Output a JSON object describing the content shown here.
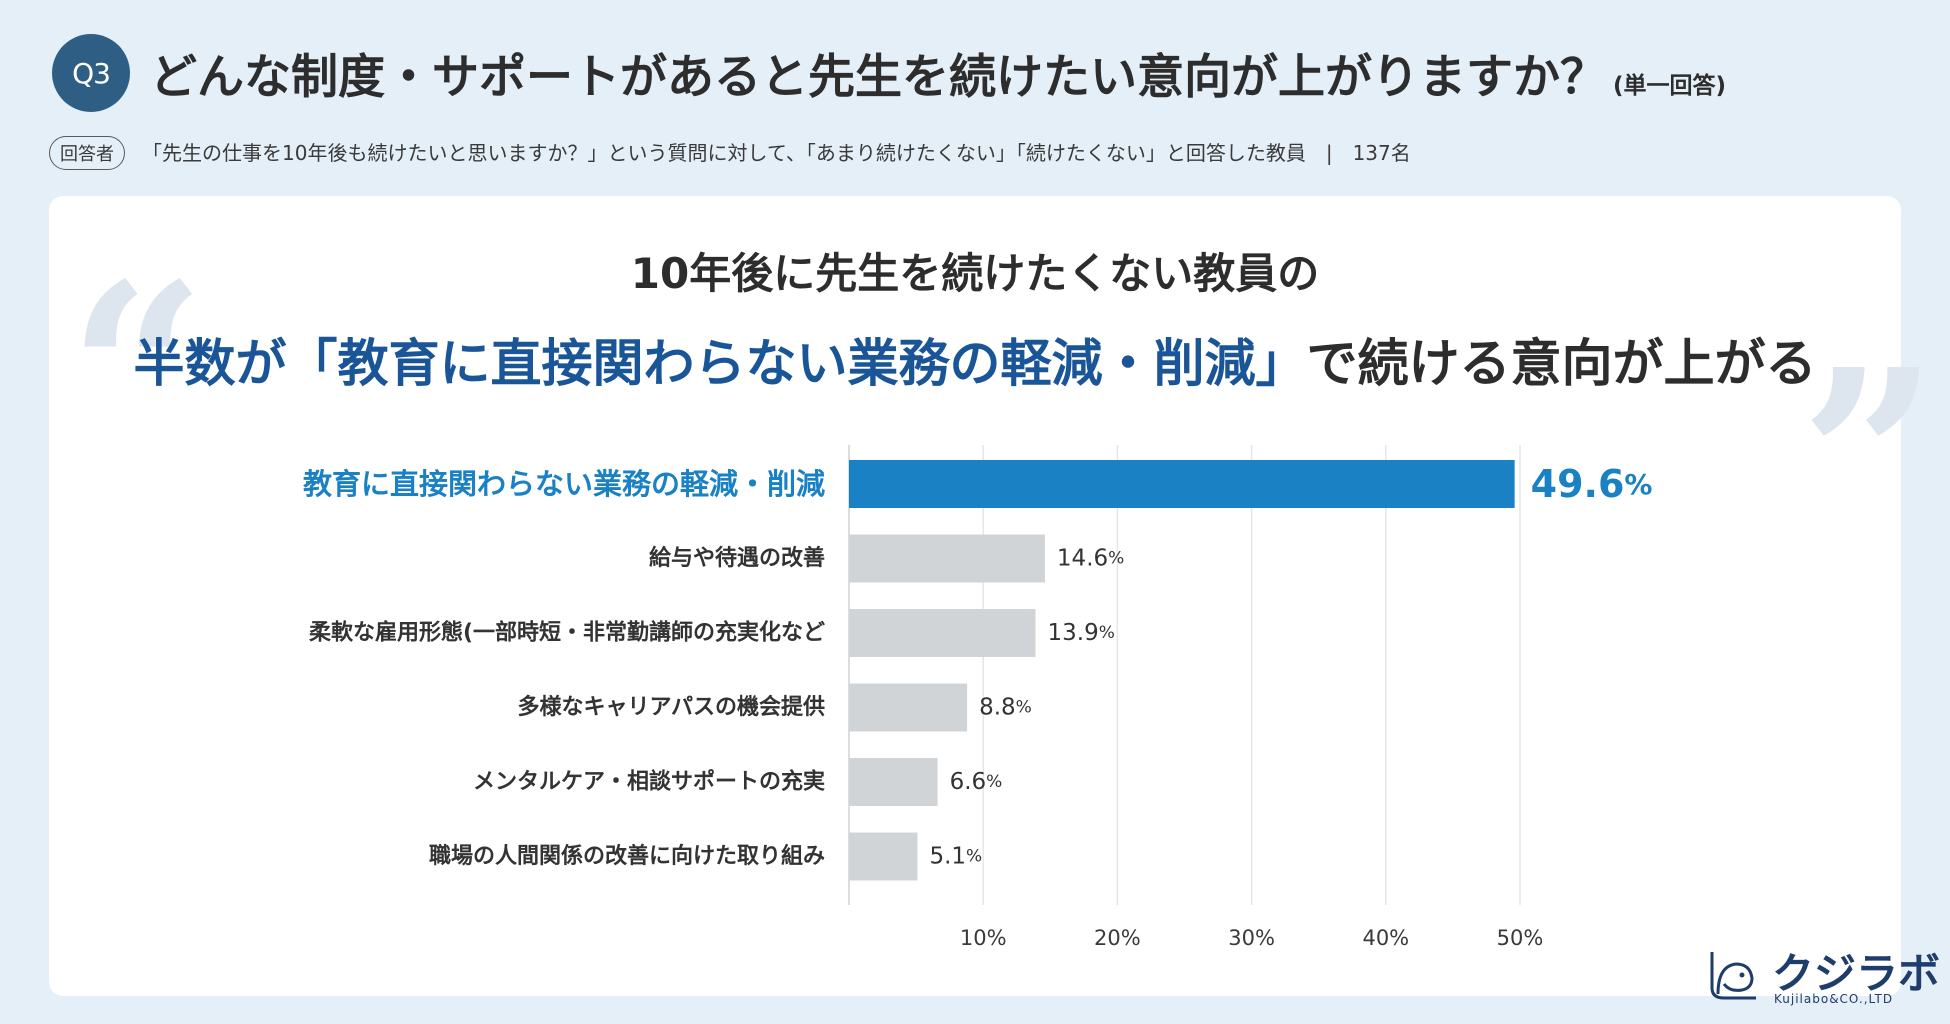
{
  "question": {
    "badge": "Q3",
    "title": "どんな制度・サポートがあると先生を続けたい意向が上がりますか？",
    "note": "(単一回答)"
  },
  "respondents": {
    "tag": "回答者",
    "text": "「先生の仕事を10年後も続けたいと思いますか？」という質問に対して、「あまり続けたくない」「続けたくない」と回答した教員　|　137名"
  },
  "headline": {
    "line1": "10年後に先生を続けたくない教員の",
    "line2_accent": "半数が「教育に直接関わらない業務の軽減・削減」",
    "line2_rest": "で続ける意向が上がる"
  },
  "chart_data": {
    "type": "bar",
    "orientation": "horizontal",
    "categories": [
      "教育に直接関わらない業務の軽減・削減",
      "給与や待遇の改善",
      "柔軟な雇用形態(一部時短・非常勤講師の充実化など",
      "多様なキャリアパスの機会提供",
      "メンタルケア・相談サポートの充実",
      "職場の人間関係の改善に向けた取り組み"
    ],
    "values": [
      49.6,
      14.6,
      13.9,
      8.8,
      6.6,
      5.1
    ],
    "value_unit": "%",
    "x_ticks": [
      "10%",
      "20%",
      "30%",
      "40%",
      "50%"
    ],
    "xlim": [
      0,
      50
    ],
    "grid": true,
    "highlight_index": 0,
    "colors": {
      "highlight": "#1a82c4",
      "default": "#d1d4d7",
      "grid": "#e4e7ea"
    }
  },
  "logo": {
    "ja": "クジラボ",
    "en": "Kujilabo&CO.,LTD"
  }
}
